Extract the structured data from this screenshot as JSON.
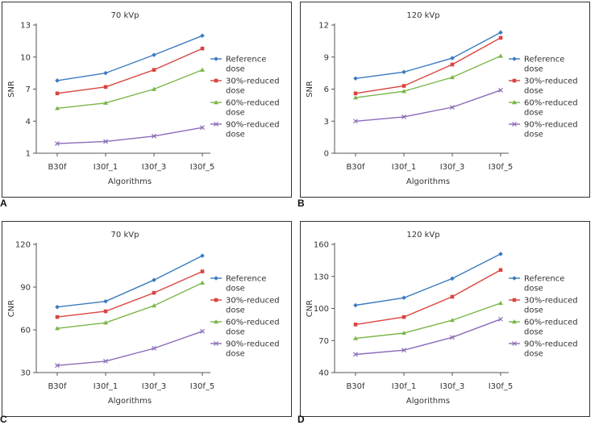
{
  "series_colors": [
    "#3a7bbf",
    "#d9443e",
    "#7ab648",
    "#8b6bb8"
  ],
  "panels": [
    {
      "label": "A"
    },
    {
      "label": "B"
    },
    {
      "label": "C"
    },
    {
      "label": "D"
    }
  ],
  "chart_data": [
    {
      "type": "line",
      "title": "70 kVp",
      "xlabel": "Algorithms",
      "ylabel": "SNR",
      "categories": [
        "B30f",
        "I30f_1",
        "I30f_3",
        "I30f_5"
      ],
      "ylim": [
        1,
        13
      ],
      "yticks": [
        1,
        4,
        7,
        10,
        13
      ],
      "series": [
        {
          "name": "Reference dose",
          "values": [
            7.8,
            8.5,
            10.2,
            12.0
          ]
        },
        {
          "name": "30%-reduced dose",
          "values": [
            6.6,
            7.2,
            8.8,
            10.8
          ]
        },
        {
          "name": "60%-reduced dose",
          "values": [
            5.2,
            5.7,
            7.0,
            8.8
          ]
        },
        {
          "name": "90%-reduced dose",
          "values": [
            1.9,
            2.1,
            2.6,
            3.4
          ]
        }
      ],
      "legend_position": "right"
    },
    {
      "type": "line",
      "title": "120 kVp",
      "xlabel": "Algorithms",
      "ylabel": "SNR",
      "categories": [
        "B30f",
        "I30f_1",
        "I30f_3",
        "I30f_5"
      ],
      "ylim": [
        0,
        12
      ],
      "yticks": [
        0,
        3,
        6,
        9,
        12
      ],
      "series": [
        {
          "name": "Reference dose",
          "values": [
            7.0,
            7.6,
            8.9,
            11.3
          ]
        },
        {
          "name": "30%-reduced dose",
          "values": [
            5.6,
            6.3,
            8.3,
            10.8
          ]
        },
        {
          "name": "60%-reduced dose",
          "values": [
            5.2,
            5.8,
            7.1,
            9.1
          ]
        },
        {
          "name": "90%-reduced dose",
          "values": [
            3.0,
            3.4,
            4.3,
            5.9
          ]
        }
      ],
      "legend_position": "right"
    },
    {
      "type": "line",
      "title": "70 kVp",
      "xlabel": "Algorithms",
      "ylabel": "CNR",
      "categories": [
        "B30f",
        "I30f_1",
        "I30f_3",
        "I30f_5"
      ],
      "ylim": [
        30,
        120
      ],
      "yticks": [
        30,
        60,
        90,
        120
      ],
      "series": [
        {
          "name": "Reference dose",
          "values": [
            76,
            80,
            95,
            112
          ]
        },
        {
          "name": "30%-reduced dose",
          "values": [
            69,
            73,
            86,
            101
          ]
        },
        {
          "name": "60%-reduced dose",
          "values": [
            61,
            65,
            77,
            93
          ]
        },
        {
          "name": "90%-reduced dose",
          "values": [
            35,
            38,
            47,
            59
          ]
        }
      ],
      "legend_position": "right"
    },
    {
      "type": "line",
      "title": "120 kVp",
      "xlabel": "Algorithms",
      "ylabel": "CNR",
      "categories": [
        "B30f",
        "I30f_1",
        "I30f_3",
        "I30f_5"
      ],
      "ylim": [
        40,
        160
      ],
      "yticks": [
        40,
        70,
        100,
        130,
        160
      ],
      "series": [
        {
          "name": "Reference dose",
          "values": [
            103,
            110,
            128,
            151
          ]
        },
        {
          "name": "30%-reduced dose",
          "values": [
            85,
            92,
            111,
            136
          ]
        },
        {
          "name": "60%-reduced dose",
          "values": [
            72,
            77,
            89,
            105
          ]
        },
        {
          "name": "90%-reduced dose",
          "values": [
            57,
            61,
            73,
            90
          ]
        }
      ],
      "legend_position": "right"
    }
  ]
}
